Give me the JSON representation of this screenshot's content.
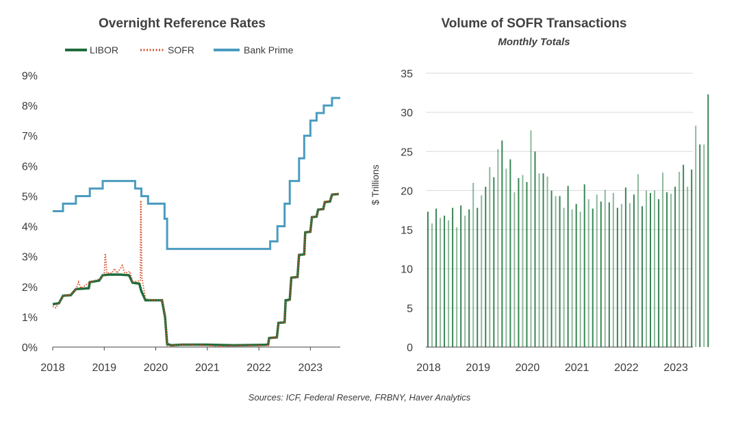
{
  "source_note": "Sources: ICF, Federal Reserve, FRBNY, Haver Analytics",
  "colors": {
    "libor": "#1e6b3a",
    "sofr": "#d4502a",
    "bank_prime": "#4a9bbf",
    "volume_bar": "#2e7d4a",
    "grid": "#d9d9d9",
    "axis": "#404040"
  },
  "chart_data": [
    {
      "type": "line",
      "title": "Overnight Reference Rates",
      "xlabel": "",
      "ylabel": "",
      "xlim": [
        2018.0,
        2023.58
      ],
      "ylim": [
        0,
        9
      ],
      "x_ticks": [
        2018,
        2019,
        2020,
        2021,
        2022,
        2023
      ],
      "x_tick_labels": [
        "2018",
        "2019",
        "2020",
        "2021",
        "2022",
        "2023"
      ],
      "y_ticks": [
        0,
        1,
        2,
        3,
        4,
        5,
        6,
        7,
        8,
        9
      ],
      "y_tick_labels": [
        "0%",
        "1%",
        "2%",
        "3%",
        "4%",
        "5%",
        "6%",
        "7%",
        "8%",
        "9%"
      ],
      "grid": false,
      "legend": "top",
      "series": [
        {
          "name": "LIBOR",
          "style": "solid",
          "points": [
            [
              2018.0,
              1.42
            ],
            [
              2018.12,
              1.45
            ],
            [
              2018.2,
              1.7
            ],
            [
              2018.35,
              1.72
            ],
            [
              2018.45,
              1.92
            ],
            [
              2018.55,
              1.93
            ],
            [
              2018.7,
              1.95
            ],
            [
              2018.72,
              2.15
            ],
            [
              2018.9,
              2.2
            ],
            [
              2018.97,
              2.38
            ],
            [
              2019.1,
              2.4
            ],
            [
              2019.3,
              2.4
            ],
            [
              2019.48,
              2.38
            ],
            [
              2019.55,
              2.13
            ],
            [
              2019.68,
              2.1
            ],
            [
              2019.72,
              1.85
            ],
            [
              2019.8,
              1.55
            ],
            [
              2019.95,
              1.55
            ],
            [
              2020.12,
              1.55
            ],
            [
              2020.18,
              1.0
            ],
            [
              2020.22,
              0.1
            ],
            [
              2020.3,
              0.06
            ],
            [
              2020.5,
              0.08
            ],
            [
              2021.0,
              0.08
            ],
            [
              2021.5,
              0.06
            ],
            [
              2022.0,
              0.07
            ],
            [
              2022.18,
              0.08
            ],
            [
              2022.2,
              0.3
            ],
            [
              2022.35,
              0.32
            ],
            [
              2022.38,
              0.8
            ],
            [
              2022.5,
              0.82
            ],
            [
              2022.52,
              1.55
            ],
            [
              2022.6,
              1.57
            ],
            [
              2022.63,
              2.3
            ],
            [
              2022.75,
              2.32
            ],
            [
              2022.78,
              3.05
            ],
            [
              2022.88,
              3.07
            ],
            [
              2022.9,
              3.8
            ],
            [
              2023.0,
              3.82
            ],
            [
              2023.03,
              4.3
            ],
            [
              2023.12,
              4.32
            ],
            [
              2023.15,
              4.55
            ],
            [
              2023.25,
              4.57
            ],
            [
              2023.28,
              4.8
            ],
            [
              2023.38,
              4.82
            ],
            [
              2023.42,
              5.05
            ],
            [
              2023.55,
              5.07
            ]
          ]
        },
        {
          "name": "SOFR",
          "style": "dotted",
          "points": [
            [
              2018.0,
              1.35
            ],
            [
              2018.06,
              1.3
            ],
            [
              2018.12,
              1.45
            ],
            [
              2018.2,
              1.7
            ],
            [
              2018.35,
              1.72
            ],
            [
              2018.45,
              1.9
            ],
            [
              2018.5,
              2.15
            ],
            [
              2018.55,
              1.95
            ],
            [
              2018.72,
              2.15
            ],
            [
              2018.9,
              2.25
            ],
            [
              2019.0,
              2.4
            ],
            [
              2019.02,
              3.1
            ],
            [
              2019.05,
              2.45
            ],
            [
              2019.15,
              2.45
            ],
            [
              2019.2,
              2.6
            ],
            [
              2019.25,
              2.45
            ],
            [
              2019.35,
              2.7
            ],
            [
              2019.4,
              2.45
            ],
            [
              2019.5,
              2.5
            ],
            [
              2019.55,
              2.15
            ],
            [
              2019.7,
              2.2
            ],
            [
              2019.71,
              4.85
            ],
            [
              2019.73,
              2.3
            ],
            [
              2019.8,
              1.6
            ],
            [
              2019.95,
              1.55
            ],
            [
              2020.12,
              1.55
            ],
            [
              2020.18,
              1.1
            ],
            [
              2020.22,
              0.05
            ],
            [
              2020.3,
              0.05
            ],
            [
              2020.5,
              0.09
            ],
            [
              2021.0,
              0.05
            ],
            [
              2021.3,
              0.02
            ],
            [
              2021.5,
              0.05
            ],
            [
              2022.0,
              0.05
            ],
            [
              2022.18,
              0.05
            ],
            [
              2022.2,
              0.3
            ],
            [
              2022.35,
              0.32
            ],
            [
              2022.38,
              0.8
            ],
            [
              2022.5,
              0.82
            ],
            [
              2022.52,
              1.5
            ],
            [
              2022.6,
              1.55
            ],
            [
              2022.63,
              2.3
            ],
            [
              2022.75,
              2.32
            ],
            [
              2022.78,
              3.05
            ],
            [
              2022.88,
              3.07
            ],
            [
              2022.9,
              3.8
            ],
            [
              2023.0,
              3.82
            ],
            [
              2023.03,
              4.3
            ],
            [
              2023.12,
              4.32
            ],
            [
              2023.15,
              4.55
            ],
            [
              2023.25,
              4.57
            ],
            [
              2023.28,
              4.82
            ],
            [
              2023.38,
              4.84
            ],
            [
              2023.42,
              5.06
            ],
            [
              2023.55,
              5.08
            ]
          ]
        },
        {
          "name": "Bank Prime",
          "style": "step",
          "points": [
            [
              2018.0,
              4.5
            ],
            [
              2018.2,
              4.75
            ],
            [
              2018.45,
              5.0
            ],
            [
              2018.72,
              5.25
            ],
            [
              2018.97,
              5.5
            ],
            [
              2019.6,
              5.25
            ],
            [
              2019.72,
              5.0
            ],
            [
              2019.85,
              4.75
            ],
            [
              2020.17,
              4.25
            ],
            [
              2020.22,
              3.25
            ],
            [
              2022.22,
              3.5
            ],
            [
              2022.36,
              4.0
            ],
            [
              2022.5,
              4.75
            ],
            [
              2022.6,
              5.5
            ],
            [
              2022.78,
              6.25
            ],
            [
              2022.88,
              7.0
            ],
            [
              2023.0,
              7.5
            ],
            [
              2023.12,
              7.75
            ],
            [
              2023.26,
              8.0
            ],
            [
              2023.42,
              8.25
            ],
            [
              2023.58,
              8.25
            ]
          ]
        }
      ]
    },
    {
      "type": "bar",
      "title": "Volume of SOFR Transactions",
      "subtitle": "Monthly Totals",
      "xlabel": "",
      "ylabel": "$ Trillions",
      "xlim": [
        2018.0,
        2023.4
      ],
      "ylim": [
        0,
        35
      ],
      "x_ticks": [
        2018,
        2019,
        2020,
        2021,
        2022,
        2023
      ],
      "x_tick_labels": [
        "2018",
        "2019",
        "2020",
        "2021",
        "2022",
        "2023"
      ],
      "y_ticks": [
        0,
        5,
        10,
        15,
        20,
        25,
        30,
        35
      ],
      "y_tick_labels": [
        "0",
        "5",
        "10",
        "15",
        "20",
        "25",
        "30",
        "35"
      ],
      "grid": true,
      "legend": "none",
      "start_year": 2018,
      "values": [
        17.3,
        15.8,
        17.7,
        16.5,
        16.8,
        16.2,
        17.8,
        15.3,
        18.1,
        16.8,
        17.6,
        21.0,
        17.8,
        19.4,
        20.5,
        23.0,
        21.7,
        25.3,
        26.4,
        22.8,
        24.0,
        19.8,
        21.6,
        22.0,
        21.1,
        27.7,
        25.0,
        22.2,
        22.2,
        21.8,
        20.0,
        19.3,
        19.3,
        17.8,
        20.6,
        17.6,
        18.3,
        17.3,
        20.8,
        18.9,
        17.7,
        19.5,
        18.6,
        20.1,
        18.5,
        19.7,
        17.8,
        18.3,
        20.4,
        18.4,
        19.5,
        22.1,
        18.0,
        20.0,
        19.7,
        20.0,
        18.9,
        22.3,
        19.8,
        19.6,
        20.5,
        22.4,
        23.3,
        20.5,
        22.7,
        28.3,
        25.9,
        25.9,
        32.3
      ]
    }
  ]
}
